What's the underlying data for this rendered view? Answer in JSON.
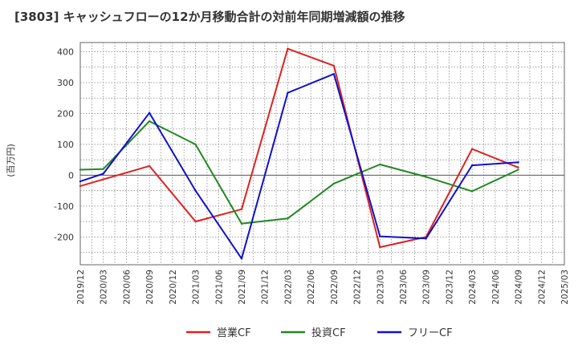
{
  "chart_data": {
    "type": "line",
    "title": "[3803]  キャッシュフローの12か月移動合計の対前年同期増減額の推移",
    "ylabel": "(百万円)",
    "xlabel": "",
    "ylim": [
      -290,
      430
    ],
    "yticks": [
      400,
      300,
      200,
      100,
      0,
      -100,
      -200
    ],
    "ytick_labels": [
      "400",
      "300",
      "200",
      "100",
      "0",
      "-100",
      "-200"
    ],
    "categories": [
      "2019/12",
      "2020/03",
      "2020/06",
      "2020/09",
      "2020/12",
      "2021/03",
      "2021/06",
      "2021/09",
      "2021/12",
      "2022/03",
      "2022/06",
      "2022/09",
      "2022/12",
      "2023/03",
      "2023/06",
      "2023/09",
      "2023/12",
      "2024/03",
      "2024/06",
      "2024/09",
      "2024/12",
      "2025/03"
    ],
    "grid": true,
    "legend_position": "bottom",
    "series": [
      {
        "name": "営業CF",
        "color": "#dd2222",
        "values": [
          -35,
          null,
          null,
          30,
          null,
          -150,
          null,
          -110,
          null,
          410,
          null,
          355,
          null,
          -233,
          null,
          -200,
          null,
          85,
          null,
          25,
          null,
          null
        ]
      },
      {
        "name": "投資CF",
        "color": "#228822",
        "values": [
          18,
          20,
          null,
          175,
          null,
          100,
          null,
          -157,
          null,
          -140,
          null,
          -27,
          null,
          35,
          null,
          -5,
          null,
          -52,
          null,
          18,
          null,
          null
        ]
      },
      {
        "name": "フリーCF",
        "color": "#1111cc",
        "values": [
          -20,
          5,
          null,
          202,
          null,
          -50,
          null,
          -270,
          null,
          267,
          null,
          328,
          null,
          -198,
          null,
          -205,
          null,
          32,
          null,
          42,
          null,
          null
        ]
      }
    ]
  }
}
